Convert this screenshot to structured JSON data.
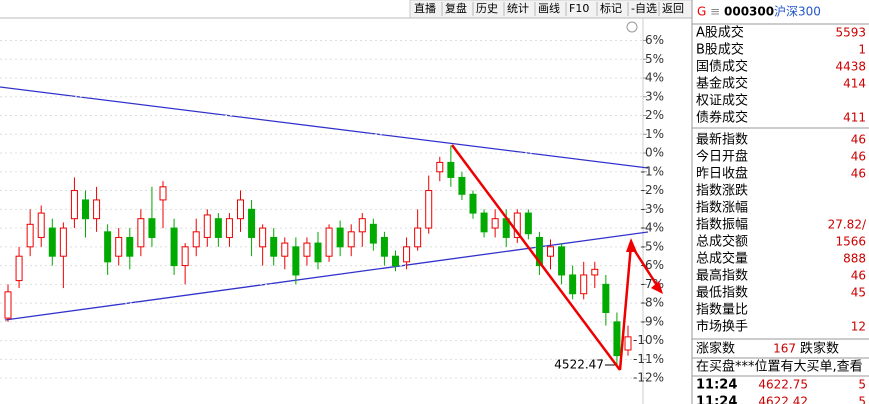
{
  "toolbar": [
    "直播",
    "复盘",
    "历史",
    "统计",
    "画线",
    "F10",
    "标记",
    "-自选",
    "返回"
  ],
  "chart": {
    "type": "candlestick",
    "ylim": [
      -12.9,
      7.2
    ],
    "yticks": [
      {
        "value": 6,
        "label": "6%"
      },
      {
        "value": 5,
        "label": "5%"
      },
      {
        "value": 4,
        "label": "4%"
      },
      {
        "value": 3,
        "label": "3%"
      },
      {
        "value": 2,
        "label": "2%"
      },
      {
        "value": 1,
        "label": "1%"
      },
      {
        "value": 0,
        "label": "0%"
      },
      {
        "value": -1,
        "label": "-1%"
      },
      {
        "value": -2,
        "label": "-2%"
      },
      {
        "value": -3,
        "label": "-3%"
      },
      {
        "value": -4,
        "label": "-4%"
      },
      {
        "value": -5,
        "label": "-5%"
      },
      {
        "value": -6,
        "label": "-6%"
      },
      {
        "value": -7,
        "label": "-7%"
      },
      {
        "value": -8,
        "label": "-8%"
      },
      {
        "value": -9,
        "label": "-9%"
      },
      {
        "value": -10,
        "label": "-10%"
      },
      {
        "value": -11,
        "label": "-11%"
      },
      {
        "value": -12,
        "label": "-12%"
      }
    ],
    "candles": [
      [
        -8.8,
        -7.4,
        -7,
        -9
      ],
      [
        -6.8,
        -5.5,
        -5,
        -7.2
      ],
      [
        -5,
        -3.8,
        -3,
        -5.5
      ],
      [
        -4.5,
        -3.2,
        -2.8,
        -5
      ],
      [
        -4,
        -5.5,
        -3.5,
        -6
      ],
      [
        -5.5,
        -4,
        -3.7,
        -7.2
      ],
      [
        -3.5,
        -2,
        -1.3,
        -4
      ],
      [
        -2.5,
        -3.5,
        -2,
        -4.5
      ],
      [
        -3.5,
        -2.5,
        -1.8,
        -4.2
      ],
      [
        -4.2,
        -5.8,
        -3.8,
        -6.5
      ],
      [
        -5.5,
        -4.5,
        -4,
        -6
      ],
      [
        -4.5,
        -5.5,
        -4,
        -6.2
      ],
      [
        -5,
        -3.5,
        -3,
        -5.5
      ],
      [
        -3.5,
        -4.5,
        -1.8,
        -5
      ],
      [
        -2.5,
        -1.8,
        -1.5,
        -4
      ],
      [
        -4,
        -6,
        -3.5,
        -6.5
      ],
      [
        -6,
        -5,
        -4.8,
        -7
      ],
      [
        -5,
        -4.2,
        -3.5,
        -5.5
      ],
      [
        -4.5,
        -3.3,
        -3,
        -5
      ],
      [
        -3.5,
        -4.5,
        -3.2,
        -5
      ],
      [
        -4.5,
        -3.5,
        -3.2,
        -5
      ],
      [
        -3.5,
        -2.5,
        -2,
        -4.2
      ],
      [
        -3,
        -4.5,
        -2.5,
        -5.5
      ],
      [
        -5,
        -4,
        -3.8,
        -6
      ],
      [
        -4.5,
        -5.5,
        -4,
        -6
      ],
      [
        -5.5,
        -4.8,
        -4.5,
        -6.2
      ],
      [
        -5,
        -6.5,
        -4.5,
        -7
      ],
      [
        -5.5,
        -4.8,
        -4.5,
        -6
      ],
      [
        -4.8,
        -5.8,
        -4.2,
        -6.2
      ],
      [
        -5.5,
        -4,
        -3.8,
        -5.8
      ],
      [
        -4,
        -5,
        -3.6,
        -5.5
      ],
      [
        -5,
        -4.2,
        -3.8,
        -5.5
      ],
      [
        -4.2,
        -3.5,
        -3.2,
        -5
      ],
      [
        -3.8,
        -4.8,
        -3.5,
        -5.2
      ],
      [
        -4.5,
        -5.5,
        -4.2,
        -6
      ],
      [
        -5.5,
        -6,
        -5.2,
        -6.3
      ],
      [
        -5.8,
        -5,
        -4.5,
        -6.2
      ],
      [
        -5,
        -4,
        -3,
        -5.2
      ],
      [
        -4,
        -2,
        -1.2,
        -4.3
      ],
      [
        -1,
        -0.5,
        -0.2,
        -1.5
      ],
      [
        -0.5,
        -1.3,
        0.4,
        -1.8
      ],
      [
        -1.3,
        -2.2,
        -1,
        -2.5
      ],
      [
        -2.2,
        -3.2,
        -2,
        -3.5
      ],
      [
        -3.2,
        -4.2,
        -3,
        -4.5
      ],
      [
        -4,
        -3.5,
        -3,
        -4.5
      ],
      [
        -3.5,
        -4.5,
        -3,
        -5
      ],
      [
        -4.5,
        -3.2,
        -3,
        -4.8
      ],
      [
        -3.2,
        -4.3,
        -3,
        -4.6
      ],
      [
        -4.5,
        -6,
        -4.2,
        -6.5
      ],
      [
        -5.5,
        -5,
        -4.6,
        -6.2
      ],
      [
        -5,
        -6.5,
        -4.8,
        -7
      ],
      [
        -6.5,
        -7.5,
        -6,
        -7.8
      ],
      [
        -7.5,
        -6.5,
        -5.8,
        -7.8
      ],
      [
        -6.5,
        -6.2,
        -5.8,
        -7.2
      ],
      [
        -7,
        -8.5,
        -6.5,
        -9.2
      ],
      [
        -9,
        -10.8,
        -8.5,
        -11.3
      ],
      [
        -10.5,
        -9.8,
        -9.2,
        -10.8
      ]
    ],
    "low_label": "4522.47"
  },
  "panel": {
    "prefix": "G",
    "code": "000300",
    "name": "沪深300",
    "rows": [
      [
        "A股成交",
        "5593"
      ],
      [
        "B股成交",
        "1"
      ],
      [
        "国债成交",
        "4438"
      ],
      [
        "基金成交",
        "414"
      ],
      [
        "权证成交",
        ""
      ],
      [
        "债券成交",
        "411"
      ],
      [
        "最新指数",
        "46"
      ],
      [
        "今日开盘",
        "46"
      ],
      [
        "昨日收盘",
        "46"
      ],
      [
        "指数涨跌",
        ""
      ],
      [
        "指数涨幅",
        ""
      ],
      [
        "指数振幅",
        "27.82/"
      ],
      [
        "总成交额",
        "1566"
      ],
      [
        "总成交量",
        "888"
      ],
      [
        "最高指数",
        "46"
      ],
      [
        "最低指数",
        "45"
      ],
      [
        "指数量比",
        ""
      ],
      [
        "市场换手",
        "12"
      ]
    ],
    "rise_label": "涨家数",
    "rise": 167,
    "fall_label": "跌家数",
    "notice": "在买盘***位置有大买单,查看",
    "ticks": [
      [
        "11:24",
        "4622.75",
        "5"
      ],
      [
        "11:24",
        "4622.42",
        "5"
      ]
    ]
  }
}
